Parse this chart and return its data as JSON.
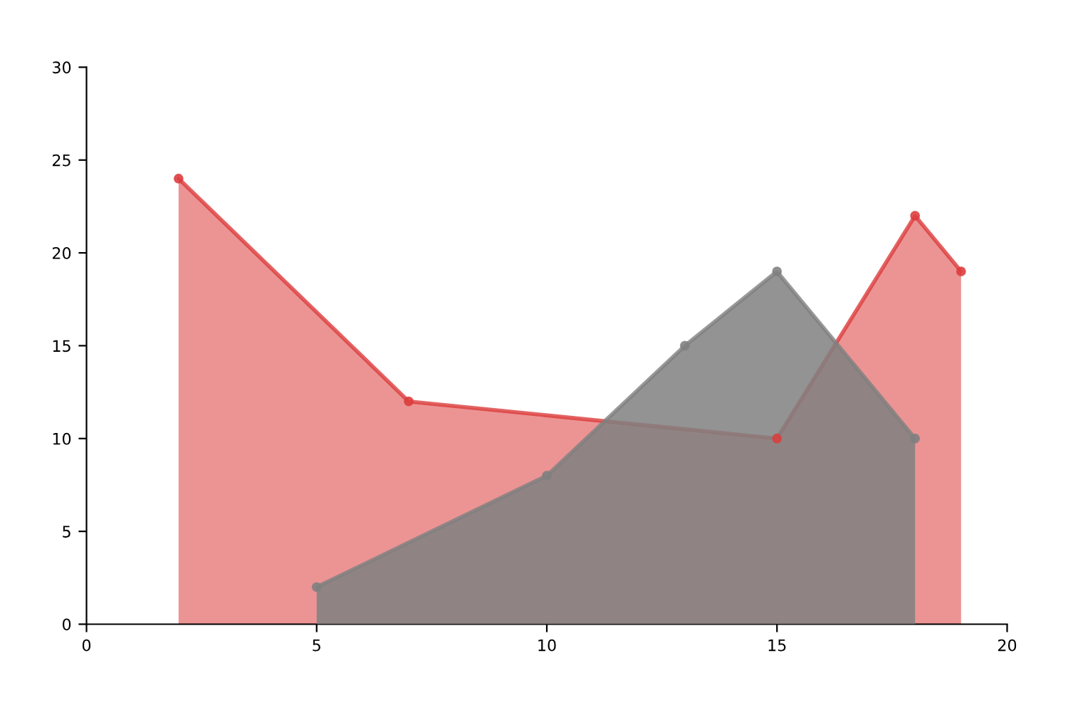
{
  "chart_data": {
    "type": "area",
    "series": [
      {
        "color": "#dc3c3c",
        "x": [
          2,
          7,
          15,
          18,
          19
        ],
        "values": [
          24,
          12,
          10,
          22,
          19
        ]
      },
      {
        "color": "#808080",
        "x": [
          5,
          10,
          13,
          15,
          18
        ],
        "values": [
          2,
          8,
          15,
          19,
          10
        ]
      }
    ],
    "xlim": [
      0,
      20
    ],
    "xticks": [
      0,
      5,
      10,
      15,
      20
    ],
    "ylim": [
      0,
      30
    ],
    "yticks": [
      0,
      5,
      10,
      15,
      20,
      25,
      30
    ],
    "marker": "circle",
    "grid": false,
    "legend": false
  }
}
